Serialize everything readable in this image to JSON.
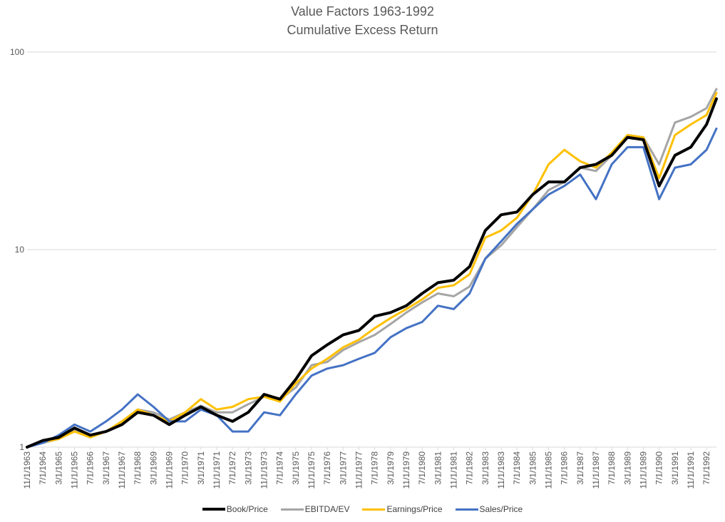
{
  "colors": {
    "book_price": "#000000",
    "ebitda_ev": "#a5a5a5",
    "earnings_price": "#ffc000",
    "sales_price": "#4472c4",
    "grid": "#d9d9d9",
    "text": "#595959"
  },
  "chart_data": {
    "type": "line",
    "title": "Value Factors 1963-1992",
    "subtitle": "Cumulative Excess Return",
    "xlabel": "",
    "ylabel": "",
    "yscale": "log",
    "ylim": [
      1,
      100
    ],
    "y_ticks": [
      "1",
      "10",
      "100"
    ],
    "xlim": [
      "1963-11",
      "1992-12"
    ],
    "grid": true,
    "legend_position": "bottom",
    "x_tick_labels": [
      "11/1/1963",
      "7/1/1964",
      "3/1/1965",
      "11/1/1965",
      "7/1/1966",
      "3/1/1967",
      "11/1/1967",
      "7/1/1968",
      "3/1/1969",
      "11/1/1969",
      "7/1/1970",
      "3/1/1971",
      "11/1/1971",
      "7/1/1972",
      "3/1/1973",
      "11/1/1973",
      "7/1/1974",
      "3/1/1975",
      "11/1/1975",
      "7/1/1976",
      "3/1/1977",
      "11/1/1977",
      "7/1/1978",
      "3/1/1979",
      "11/1/1979",
      "7/1/1980",
      "3/1/1981",
      "11/1/1981",
      "7/1/1982",
      "3/1/1983",
      "11/1/1983",
      "7/1/1984",
      "3/1/1985",
      "11/1/1985",
      "7/1/1986",
      "3/1/1987",
      "11/1/1987",
      "7/1/1988",
      "3/1/1989",
      "11/1/1989",
      "7/1/1990",
      "3/1/1991",
      "11/1/1991",
      "7/1/1992"
    ],
    "x": [
      "1963-11",
      "1964-07",
      "1965-03",
      "1965-11",
      "1966-07",
      "1967-03",
      "1967-11",
      "1968-07",
      "1969-03",
      "1969-11",
      "1970-07",
      "1971-03",
      "1971-11",
      "1972-07",
      "1973-03",
      "1973-11",
      "1974-07",
      "1975-03",
      "1975-11",
      "1976-07",
      "1977-03",
      "1977-11",
      "1978-07",
      "1979-03",
      "1979-11",
      "1980-07",
      "1981-03",
      "1981-11",
      "1982-07",
      "1983-03",
      "1983-11",
      "1984-07",
      "1985-03",
      "1985-11",
      "1986-07",
      "1987-03",
      "1987-11",
      "1988-07",
      "1989-03",
      "1989-11",
      "1990-07",
      "1991-03",
      "1991-11",
      "1992-07",
      "1992-12"
    ],
    "series": [
      {
        "name": "Book/Price",
        "color_key": "book_price",
        "width": 4,
        "values": [
          1.0,
          1.08,
          1.12,
          1.25,
          1.15,
          1.2,
          1.3,
          1.5,
          1.45,
          1.3,
          1.45,
          1.6,
          1.45,
          1.35,
          1.5,
          1.85,
          1.75,
          2.2,
          2.9,
          3.3,
          3.7,
          3.9,
          4.6,
          4.8,
          5.2,
          6.0,
          6.8,
          7.0,
          8.2,
          12.5,
          15.0,
          15.5,
          19.0,
          22.0,
          22.0,
          26.0,
          27.0,
          30.0,
          37.0,
          36.0,
          21.0,
          30.0,
          33.0,
          43.0,
          58.0
        ]
      },
      {
        "name": "EBITDA/EV",
        "color_key": "ebitda_ev",
        "width": 3,
        "values": [
          1.0,
          1.05,
          1.1,
          1.22,
          1.15,
          1.2,
          1.35,
          1.55,
          1.5,
          1.38,
          1.5,
          1.62,
          1.5,
          1.5,
          1.65,
          1.8,
          1.75,
          2.0,
          2.6,
          2.7,
          3.1,
          3.4,
          3.7,
          4.2,
          4.8,
          5.4,
          6.0,
          5.8,
          6.5,
          9.0,
          10.5,
          13.0,
          16.0,
          20.0,
          22.0,
          26.0,
          25.0,
          30.0,
          38.0,
          37.0,
          27.0,
          44.0,
          47.0,
          52.0,
          65.0
        ]
      },
      {
        "name": "Earnings/Price",
        "color_key": "earnings_price",
        "width": 3,
        "values": [
          1.0,
          1.06,
          1.1,
          1.2,
          1.12,
          1.2,
          1.35,
          1.55,
          1.45,
          1.35,
          1.5,
          1.75,
          1.55,
          1.6,
          1.75,
          1.8,
          1.7,
          2.1,
          2.5,
          2.8,
          3.2,
          3.5,
          4.0,
          4.5,
          5.0,
          5.6,
          6.4,
          6.6,
          7.5,
          11.5,
          12.5,
          14.5,
          19.0,
          27.0,
          32.0,
          28.0,
          26.0,
          31.0,
          38.0,
          37.0,
          23.0,
          38.0,
          43.0,
          48.0,
          62.0
        ]
      },
      {
        "name": "Sales/Price",
        "color_key": "sales_price",
        "width": 3,
        "values": [
          1.0,
          1.05,
          1.15,
          1.3,
          1.2,
          1.35,
          1.55,
          1.85,
          1.6,
          1.35,
          1.35,
          1.55,
          1.45,
          1.2,
          1.2,
          1.5,
          1.45,
          1.85,
          2.3,
          2.5,
          2.6,
          2.8,
          3.0,
          3.6,
          4.0,
          4.3,
          5.2,
          5.0,
          6.0,
          9.0,
          11.0,
          13.5,
          16.0,
          19.0,
          21.0,
          24.0,
          18.0,
          27.0,
          33.0,
          33.0,
          18.0,
          26.0,
          27.0,
          32.0,
          41.0
        ]
      }
    ]
  }
}
